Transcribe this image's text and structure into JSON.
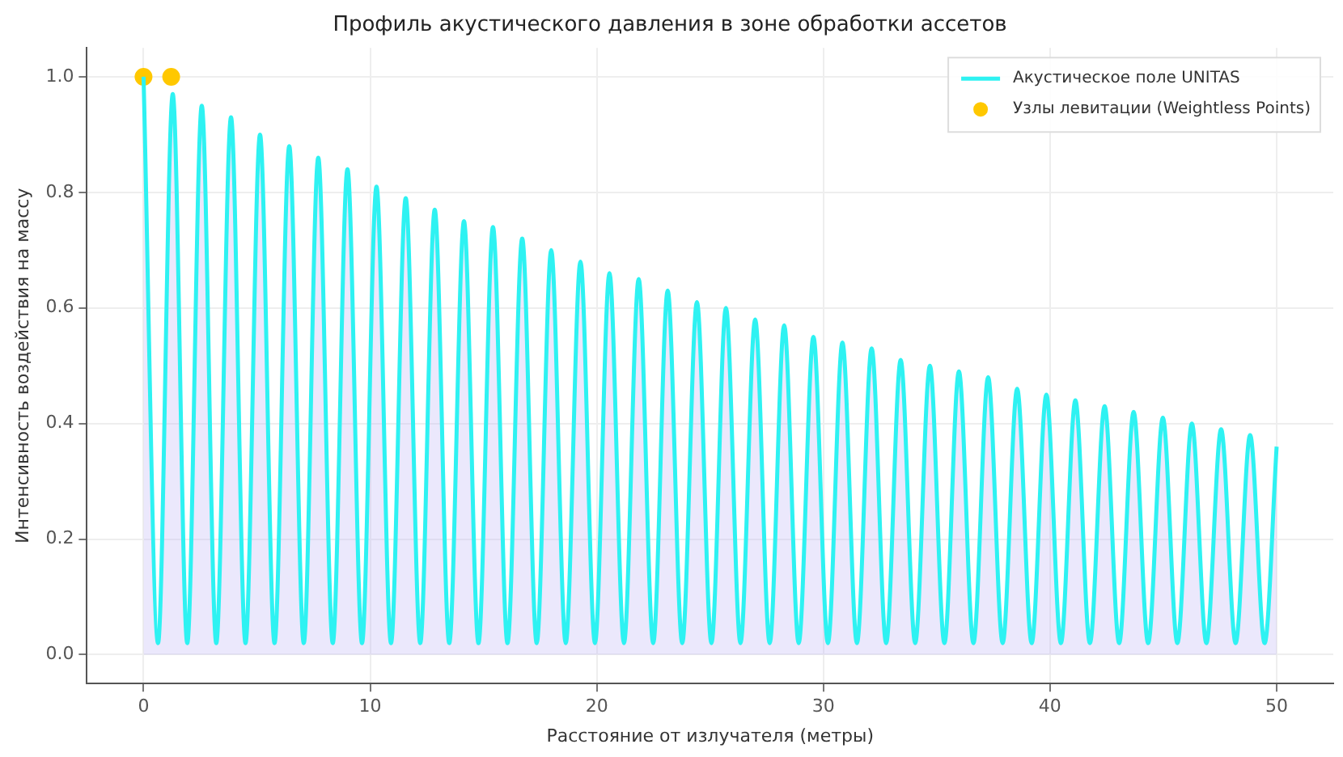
{
  "chart_data": {
    "type": "area",
    "title": "Профиль акустического давления в зоне обработки ассетов",
    "xlabel": "Расстояние от излучателя (метры)",
    "ylabel": "Интенсивность воздействия на массу",
    "xlim": [
      -2.5,
      52.5
    ],
    "xticks": [
      0,
      10,
      20,
      30,
      40,
      50
    ],
    "ylim": [
      -0.05,
      1.05
    ],
    "yticks": [
      {
        "value": 0,
        "label": "0.0"
      },
      {
        "value": 0.2,
        "label": "0.2"
      },
      {
        "value": 0.4,
        "label": "0.4"
      },
      {
        "value": 0.6,
        "label": "0.6"
      },
      {
        "value": 0.8,
        "label": "0.8"
      },
      {
        "value": 1,
        "label": "1.0"
      }
    ],
    "grid": true,
    "legend": "top right",
    "series": [
      {
        "name": "Акустическое поле UNITAS",
        "color": "#2ef2f2",
        "x": [
          0,
          0.64,
          1.29,
          1.93,
          2.57,
          3.21,
          3.86,
          4.5,
          5.14,
          5.78,
          6.43,
          7.07,
          7.71,
          8.35,
          9.0,
          9.64,
          10.28,
          10.92,
          11.57,
          12.21,
          12.85,
          13.49,
          14.14,
          14.78,
          15.42,
          16.06,
          16.71,
          17.35,
          17.99,
          18.63,
          19.28,
          19.92,
          20.56,
          21.2,
          21.85,
          22.49,
          23.13,
          23.77,
          24.42,
          25.06,
          25.7,
          26.34,
          26.99,
          27.63,
          28.27,
          28.91,
          29.56,
          30.2,
          30.84,
          31.48,
          32.13,
          32.77,
          33.41,
          34.05,
          34.7,
          35.34,
          35.98,
          36.62,
          37.27,
          37.91,
          38.55,
          39.19,
          39.84,
          40.48,
          41.12,
          41.76,
          42.41,
          43.05,
          43.69,
          44.33,
          44.98,
          45.62,
          46.26,
          46.9,
          47.55,
          48.19,
          48.83,
          49.47,
          50
        ],
        "values": [
          1.0,
          0.02,
          0.97,
          0.02,
          0.95,
          0.02,
          0.93,
          0.02,
          0.9,
          0.02,
          0.88,
          0.02,
          0.86,
          0.02,
          0.84,
          0.02,
          0.81,
          0.02,
          0.79,
          0.02,
          0.77,
          0.02,
          0.75,
          0.02,
          0.74,
          0.02,
          0.72,
          0.02,
          0.7,
          0.02,
          0.68,
          0.02,
          0.66,
          0.02,
          0.65,
          0.02,
          0.63,
          0.02,
          0.61,
          0.02,
          0.6,
          0.02,
          0.58,
          0.02,
          0.57,
          0.02,
          0.55,
          0.02,
          0.54,
          0.02,
          0.53,
          0.02,
          0.51,
          0.02,
          0.5,
          0.02,
          0.49,
          0.02,
          0.48,
          0.02,
          0.46,
          0.02,
          0.45,
          0.02,
          0.44,
          0.02,
          0.43,
          0.02,
          0.42,
          0.02,
          0.41,
          0.02,
          0.4,
          0.02,
          0.39,
          0.02,
          0.38,
          0.02,
          0.36
        ]
      },
      {
        "name": "Узлы левитации (Weightless Points)",
        "type": "scatter",
        "color": "#ffc800",
        "marker": "circle",
        "x": [
          0,
          1.22
        ],
        "values": [
          1.0,
          1.0
        ]
      }
    ]
  }
}
